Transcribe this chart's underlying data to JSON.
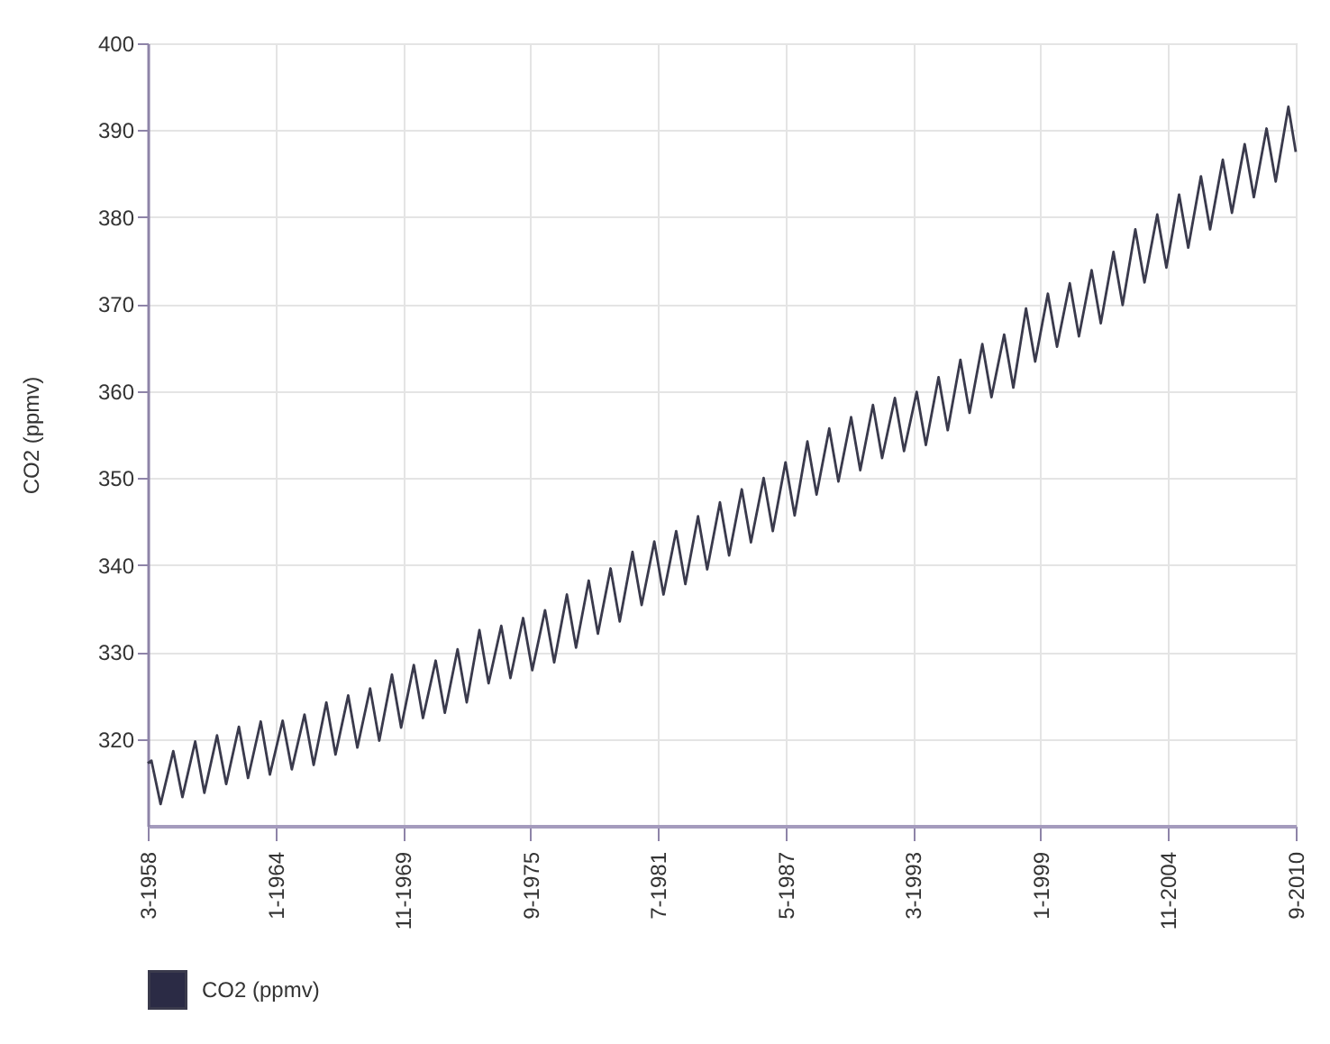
{
  "chart_data": {
    "type": "line",
    "ylabel": "CO2 (ppmv)",
    "legend": "bottom left",
    "grid": true,
    "marker": "none",
    "line_style": "solid",
    "ylim": [
      310,
      400
    ],
    "yticks": [
      320,
      330,
      340,
      350,
      360,
      370,
      380,
      390,
      400
    ],
    "xlim": [
      "1958-03",
      "2010-09"
    ],
    "xticks": [
      {
        "value": "1958-03",
        "label": "3-1958"
      },
      {
        "value": "1964-01",
        "label": "1-1964"
      },
      {
        "value": "1969-11",
        "label": "11-1969"
      },
      {
        "value": "1975-09",
        "label": "9-1975"
      },
      {
        "value": "1981-07",
        "label": "7-1981"
      },
      {
        "value": "1987-05",
        "label": "5-1987"
      },
      {
        "value": "1993-03",
        "label": "3-1993"
      },
      {
        "value": "1999-01",
        "label": "1-1999"
      },
      {
        "value": "2004-11",
        "label": "11-2004"
      },
      {
        "value": "2010-09",
        "label": "9-2010"
      }
    ],
    "x": [
      "1958-03",
      "1958-05",
      "1958-10",
      "1959-05",
      "1959-10",
      "1960-05",
      "1960-10",
      "1961-05",
      "1961-10",
      "1962-05",
      "1962-10",
      "1963-05",
      "1963-10",
      "1964-05",
      "1964-10",
      "1965-05",
      "1965-10",
      "1966-05",
      "1966-10",
      "1967-05",
      "1967-10",
      "1968-05",
      "1968-10",
      "1969-05",
      "1969-10",
      "1970-05",
      "1970-10",
      "1971-05",
      "1971-10",
      "1972-05",
      "1972-10",
      "1973-05",
      "1973-10",
      "1974-05",
      "1974-10",
      "1975-05",
      "1975-10",
      "1976-05",
      "1976-10",
      "1977-05",
      "1977-10",
      "1978-05",
      "1978-10",
      "1979-05",
      "1979-10",
      "1980-05",
      "1980-10",
      "1981-05",
      "1981-10",
      "1982-05",
      "1982-10",
      "1983-05",
      "1983-10",
      "1984-05",
      "1984-10",
      "1985-05",
      "1985-10",
      "1986-05",
      "1986-10",
      "1987-05",
      "1987-10",
      "1988-05",
      "1988-10",
      "1989-05",
      "1989-10",
      "1990-05",
      "1990-10",
      "1991-05",
      "1991-10",
      "1992-05",
      "1992-10",
      "1993-05",
      "1993-10",
      "1994-05",
      "1994-10",
      "1995-05",
      "1995-10",
      "1996-05",
      "1996-10",
      "1997-05",
      "1997-10",
      "1998-05",
      "1998-10",
      "1999-05",
      "1999-10",
      "2000-05",
      "2000-10",
      "2001-05",
      "2001-10",
      "2002-05",
      "2002-10",
      "2003-05",
      "2003-10",
      "2004-05",
      "2004-10",
      "2005-05",
      "2005-10",
      "2006-05",
      "2006-10",
      "2007-05",
      "2007-10",
      "2008-05",
      "2008-10",
      "2009-05",
      "2009-10",
      "2010-05",
      "2010-09"
    ],
    "series": [
      {
        "name": "CO2 (ppmv)",
        "color": "#3a3a4c",
        "values": [
          317.2,
          317.5,
          312.5,
          318.6,
          313.3,
          319.7,
          313.8,
          320.4,
          314.8,
          321.4,
          315.5,
          322.0,
          315.9,
          322.1,
          316.5,
          322.8,
          317.0,
          324.2,
          318.2,
          325.0,
          319.0,
          325.8,
          319.8,
          327.4,
          321.3,
          328.5,
          322.4,
          329.0,
          323.0,
          330.3,
          324.2,
          332.5,
          326.4,
          333.0,
          327.0,
          333.9,
          327.9,
          334.8,
          328.8,
          336.6,
          330.5,
          338.2,
          332.1,
          339.6,
          333.5,
          341.5,
          335.4,
          342.7,
          336.6,
          343.9,
          337.8,
          345.6,
          339.5,
          347.2,
          341.1,
          348.7,
          342.6,
          350.0,
          343.9,
          351.8,
          345.7,
          354.2,
          348.1,
          355.7,
          349.6,
          357.0,
          350.9,
          358.4,
          352.3,
          359.2,
          353.1,
          359.9,
          353.8,
          361.6,
          355.5,
          363.6,
          357.5,
          365.4,
          359.3,
          366.5,
          360.4,
          369.5,
          363.4,
          371.2,
          365.1,
          372.4,
          366.3,
          373.9,
          367.8,
          376.0,
          369.9,
          378.6,
          372.5,
          380.3,
          374.2,
          382.6,
          376.5,
          384.7,
          378.6,
          386.6,
          380.5,
          388.4,
          382.3,
          390.2,
          384.1,
          392.7,
          387.5
        ]
      }
    ]
  }
}
